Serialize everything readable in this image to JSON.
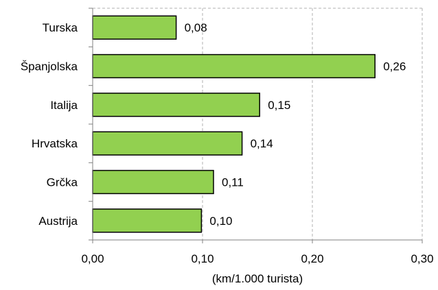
{
  "chart_data": {
    "type": "bar",
    "orientation": "horizontal",
    "categories": [
      "Turska",
      "Španjolska",
      "Italija",
      "Hrvatska",
      "Grčka",
      "Austrija"
    ],
    "values": [
      0.076,
      0.257,
      0.152,
      0.136,
      0.11,
      0.099
    ],
    "data_labels": [
      "0,08",
      "0,26",
      "0,15",
      "0,14",
      "0,11",
      "0,10"
    ],
    "xlabel": "(km/1.000 turista)",
    "ylabel": "",
    "title": "",
    "xlim": [
      0,
      0.3
    ],
    "x_ticks": [
      0,
      0.1,
      0.2,
      0.3
    ],
    "x_tick_labels": [
      "0,00",
      "0,10",
      "0,20",
      "0,30"
    ],
    "grid": "vertical dashed",
    "bar_color": "#92d050",
    "bar_edge_color": "#000000"
  }
}
